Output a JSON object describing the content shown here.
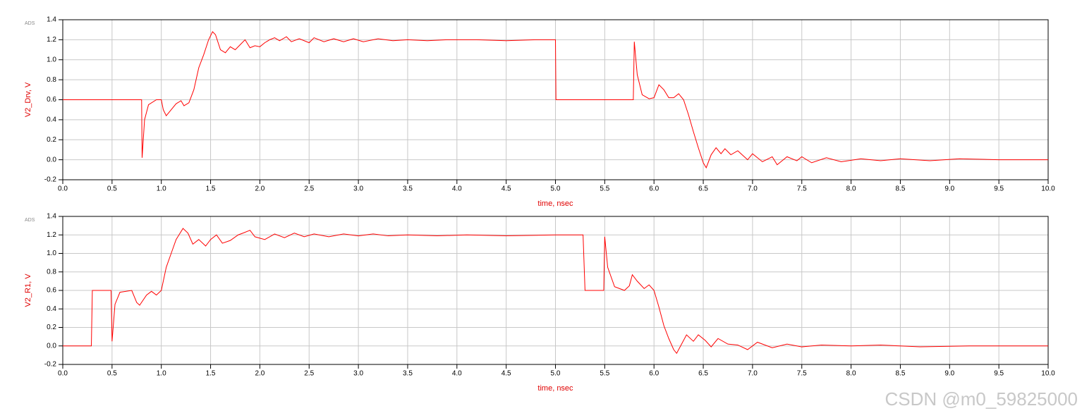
{
  "chart_data": [
    {
      "type": "line",
      "badge": "ADS",
      "xlabel": "time, nsec",
      "ylabel": "V2_Drv, V",
      "color": "#ff0000",
      "grid": true,
      "xlim": [
        0,
        10
      ],
      "ylim": [
        -0.2,
        1.4
      ],
      "xticks": [
        {
          "value": 0,
          "label": "0.0"
        },
        0.5,
        {
          "value": 1,
          "label": "1.0"
        },
        1.5,
        {
          "value": 2,
          "label": "2.0"
        },
        2.5,
        {
          "value": 3,
          "label": "3.0"
        },
        3.5,
        {
          "value": 4,
          "label": "4.0"
        },
        4.5,
        {
          "value": 5,
          "label": "5.0"
        },
        5.5,
        {
          "value": 6,
          "label": "6.0"
        },
        6.5,
        {
          "value": 7,
          "label": "7.0"
        },
        7.5,
        {
          "value": 8,
          "label": "8.0"
        },
        8.5,
        {
          "value": 9,
          "label": "9.0"
        },
        9.5,
        {
          "value": 10,
          "label": "10.0"
        }
      ],
      "yticks": [
        -0.2,
        {
          "value": 0,
          "label": "0.0"
        },
        0.2,
        0.4,
        0.6,
        0.8,
        {
          "value": 1,
          "label": "1.0"
        },
        1.2,
        1.4
      ],
      "x": [
        0,
        0.8,
        0.805,
        0.83,
        0.87,
        0.95,
        1.0,
        1.02,
        1.05,
        1.1,
        1.15,
        1.2,
        1.23,
        1.28,
        1.33,
        1.38,
        1.43,
        1.48,
        1.52,
        1.55,
        1.6,
        1.65,
        1.7,
        1.75,
        1.8,
        1.85,
        1.9,
        1.95,
        2.0,
        2.05,
        2.1,
        2.15,
        2.2,
        2.27,
        2.32,
        2.4,
        2.5,
        2.55,
        2.65,
        2.75,
        2.85,
        2.95,
        3.05,
        3.2,
        3.35,
        3.5,
        3.7,
        3.9,
        4.2,
        4.5,
        4.8,
        5.0,
        5.005,
        5.4,
        5.79,
        5.8,
        5.83,
        5.88,
        5.95,
        6.0,
        6.05,
        6.1,
        6.15,
        6.2,
        6.25,
        6.3,
        6.35,
        6.4,
        6.45,
        6.5,
        6.53,
        6.58,
        6.63,
        6.68,
        6.72,
        6.78,
        6.85,
        6.95,
        7.0,
        7.1,
        7.2,
        7.25,
        7.35,
        7.45,
        7.5,
        7.6,
        7.75,
        7.9,
        8.1,
        8.3,
        8.5,
        8.8,
        9.1,
        9.5,
        10.0
      ],
      "values": [
        0.6,
        0.6,
        0.02,
        0.4,
        0.55,
        0.6,
        0.6,
        0.5,
        0.44,
        0.5,
        0.56,
        0.59,
        0.54,
        0.57,
        0.7,
        0.92,
        1.05,
        1.2,
        1.28,
        1.25,
        1.1,
        1.07,
        1.13,
        1.1,
        1.15,
        1.2,
        1.12,
        1.14,
        1.13,
        1.17,
        1.2,
        1.22,
        1.19,
        1.23,
        1.18,
        1.21,
        1.17,
        1.22,
        1.18,
        1.21,
        1.18,
        1.21,
        1.18,
        1.21,
        1.19,
        1.2,
        1.19,
        1.2,
        1.2,
        1.19,
        1.2,
        1.2,
        0.6,
        0.6,
        0.6,
        1.18,
        0.85,
        0.65,
        0.61,
        0.62,
        0.75,
        0.7,
        0.62,
        0.62,
        0.66,
        0.6,
        0.45,
        0.28,
        0.12,
        -0.03,
        -0.08,
        0.05,
        0.12,
        0.06,
        0.11,
        0.05,
        0.09,
        0.0,
        0.06,
        -0.02,
        0.03,
        -0.05,
        0.03,
        -0.01,
        0.03,
        -0.03,
        0.02,
        -0.02,
        0.01,
        -0.01,
        0.01,
        -0.01,
        0.01,
        0.0,
        0.0
      ]
    },
    {
      "type": "line",
      "badge": "ADS",
      "xlabel": "time, nsec",
      "ylabel": "V2_R1, V",
      "color": "#ff0000",
      "grid": true,
      "xlim": [
        0,
        10
      ],
      "ylim": [
        -0.2,
        1.4
      ],
      "xticks": [
        {
          "value": 0,
          "label": "0.0"
        },
        0.5,
        {
          "value": 1,
          "label": "1.0"
        },
        1.5,
        {
          "value": 2,
          "label": "2.0"
        },
        2.5,
        {
          "value": 3,
          "label": "3.0"
        },
        3.5,
        {
          "value": 4,
          "label": "4.0"
        },
        4.5,
        {
          "value": 5,
          "label": "5.0"
        },
        5.5,
        {
          "value": 6,
          "label": "6.0"
        },
        6.5,
        {
          "value": 7,
          "label": "7.0"
        },
        7.5,
        {
          "value": 8,
          "label": "8.0"
        },
        8.5,
        {
          "value": 9,
          "label": "9.0"
        },
        9.5,
        {
          "value": 10,
          "label": "10.0"
        }
      ],
      "yticks": [
        -0.2,
        {
          "value": 0,
          "label": "0.0"
        },
        0.2,
        0.4,
        0.6,
        0.8,
        {
          "value": 1,
          "label": "1.0"
        },
        1.2,
        1.4
      ],
      "x": [
        0,
        0.29,
        0.3,
        0.49,
        0.5,
        0.53,
        0.58,
        0.7,
        0.75,
        0.78,
        0.85,
        0.9,
        0.95,
        1.0,
        1.05,
        1.1,
        1.15,
        1.22,
        1.27,
        1.32,
        1.38,
        1.45,
        1.5,
        1.56,
        1.62,
        1.7,
        1.78,
        1.83,
        1.9,
        1.95,
        2.05,
        2.15,
        2.25,
        2.35,
        2.45,
        2.55,
        2.7,
        2.85,
        3.0,
        3.15,
        3.3,
        3.5,
        3.8,
        4.1,
        4.5,
        5.0,
        5.28,
        5.3,
        5.49,
        5.5,
        5.53,
        5.6,
        5.7,
        5.75,
        5.78,
        5.83,
        5.9,
        5.95,
        6.0,
        6.05,
        6.1,
        6.15,
        6.2,
        6.23,
        6.28,
        6.33,
        6.4,
        6.45,
        6.52,
        6.58,
        6.65,
        6.75,
        6.85,
        6.95,
        7.05,
        7.2,
        7.35,
        7.5,
        7.7,
        8.0,
        8.3,
        8.7,
        9.2,
        10.0
      ],
      "values": [
        0,
        0,
        0.6,
        0.6,
        0.05,
        0.45,
        0.58,
        0.6,
        0.47,
        0.44,
        0.55,
        0.59,
        0.55,
        0.6,
        0.85,
        1.0,
        1.15,
        1.27,
        1.22,
        1.1,
        1.15,
        1.08,
        1.15,
        1.2,
        1.11,
        1.14,
        1.2,
        1.22,
        1.25,
        1.18,
        1.15,
        1.21,
        1.17,
        1.22,
        1.18,
        1.21,
        1.18,
        1.21,
        1.19,
        1.21,
        1.19,
        1.2,
        1.19,
        1.2,
        1.19,
        1.2,
        1.2,
        0.6,
        0.6,
        1.18,
        0.85,
        0.64,
        0.6,
        0.65,
        0.77,
        0.7,
        0.62,
        0.66,
        0.6,
        0.42,
        0.22,
        0.08,
        -0.04,
        -0.08,
        0.02,
        0.12,
        0.05,
        0.12,
        0.06,
        -0.01,
        0.08,
        0.02,
        0.01,
        -0.04,
        0.04,
        -0.02,
        0.02,
        -0.01,
        0.01,
        0.0,
        0.01,
        -0.01,
        0.0,
        0.0
      ]
    }
  ],
  "watermark": "CSDN @m0_59825000"
}
